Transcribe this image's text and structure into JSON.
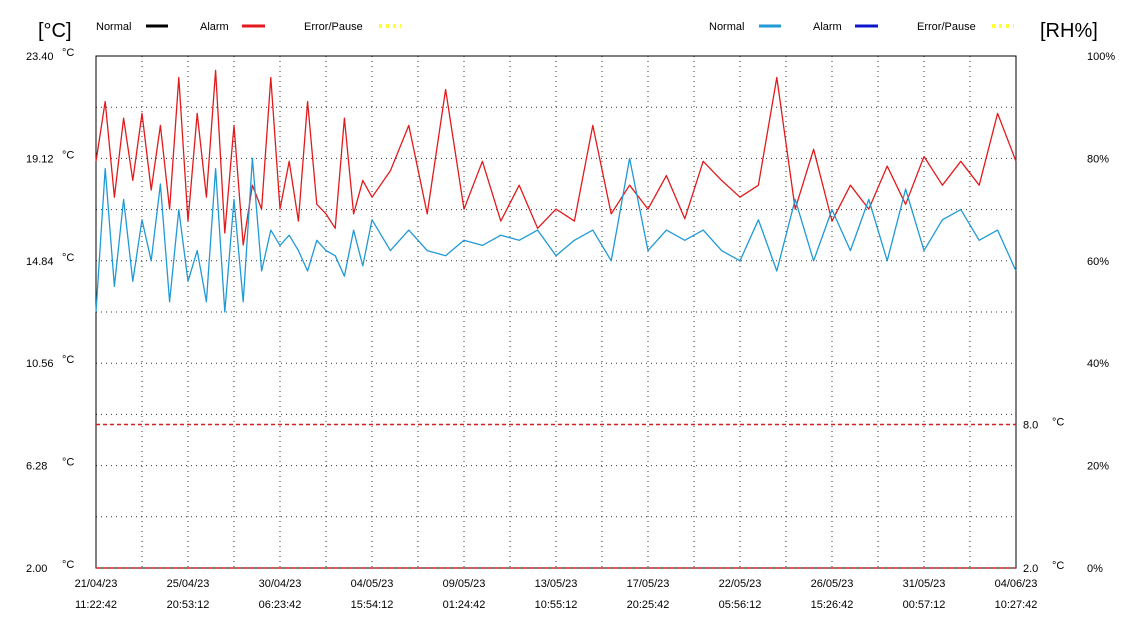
{
  "header": {
    "left_unit": "[°C]",
    "right_unit": "[RH%]",
    "legend_left": [
      {
        "label": "Normal",
        "color": "#000000",
        "style": "solid"
      },
      {
        "label": "Alarm",
        "color": "#e31a1c",
        "style": "solid"
      },
      {
        "label": "Error/Pause",
        "color": "#ffff33",
        "style": "dotted"
      }
    ],
    "legend_right": [
      {
        "label": "Normal",
        "color": "#1f9ad6",
        "style": "solid"
      },
      {
        "label": "Alarm",
        "color": "#0b16c8",
        "style": "solid"
      },
      {
        "label": "Error/Pause",
        "color": "#ffff33",
        "style": "dotted"
      }
    ]
  },
  "chart_data": {
    "type": "line",
    "grid": true,
    "y_left": {
      "ylim": [
        2.0,
        23.4
      ],
      "ticks": [
        2.0,
        6.28,
        10.56,
        14.84,
        19.12,
        23.4
      ],
      "tick_labels": [
        "2.00",
        "6.28",
        "10.56",
        "14.84",
        "19.12",
        "23.40"
      ],
      "unit": "°C"
    },
    "y_right": {
      "ylim": [
        0,
        100
      ],
      "ticks": [
        0,
        20,
        40,
        60,
        80,
        100
      ],
      "tick_labels": [
        "0%",
        "20%",
        "40%",
        "60%",
        "80%",
        "100%"
      ]
    },
    "x_ticks": [
      {
        "date": "21/04/23",
        "time": "11:22:42"
      },
      {
        "date": "25/04/23",
        "time": "20:53:12"
      },
      {
        "date": "30/04/23",
        "time": "06:23:42"
      },
      {
        "date": "04/05/23",
        "time": "15:54:12"
      },
      {
        "date": "09/05/23",
        "time": "01:24:42"
      },
      {
        "date": "13/05/23",
        "time": "10:55:12"
      },
      {
        "date": "17/05/23",
        "time": "20:25:42"
      },
      {
        "date": "22/05/23",
        "time": "05:56:12"
      },
      {
        "date": "26/05/23",
        "time": "15:26:42"
      },
      {
        "date": "31/05/23",
        "time": "00:57:12"
      },
      {
        "date": "04/06/23",
        "time": "10:27:42"
      }
    ],
    "thresholds": [
      {
        "value": 8.0,
        "label": "8.0",
        "unit": "°C",
        "color": "#d62020"
      },
      {
        "value": 2.0,
        "label": "2.0",
        "unit": "°C",
        "color": "#d62020"
      }
    ],
    "series": [
      {
        "axis": "left",
        "color": "#e31a1c",
        "x": [
          0,
          0.1,
          0.2,
          0.3,
          0.4,
          0.5,
          0.6,
          0.7,
          0.8,
          0.9,
          1.0,
          1.1,
          1.2,
          1.3,
          1.4,
          1.5,
          1.6,
          1.7,
          1.8,
          1.9,
          2.0,
          2.1,
          2.2,
          2.3,
          2.4,
          2.5,
          2.6,
          2.7,
          2.8,
          2.9,
          3.0,
          3.2,
          3.4,
          3.6,
          3.8,
          4.0,
          4.2,
          4.4,
          4.6,
          4.8,
          5.0,
          5.2,
          5.4,
          5.6,
          5.8,
          6.0,
          6.2,
          6.4,
          6.6,
          6.8,
          7.0,
          7.2,
          7.4,
          7.6,
          7.8,
          8.0,
          8.2,
          8.4,
          8.6,
          8.8,
          9.0,
          9.2,
          9.4,
          9.6,
          9.8,
          10.0
        ],
        "values": [
          19.0,
          21.5,
          17.5,
          20.8,
          18.2,
          21.0,
          17.8,
          20.5,
          17.0,
          22.5,
          16.5,
          21.0,
          17.5,
          22.8,
          16.0,
          20.5,
          15.5,
          18.0,
          17.0,
          22.5,
          17.0,
          19.0,
          16.5,
          21.5,
          17.2,
          16.8,
          16.2,
          20.8,
          16.8,
          18.2,
          17.5,
          18.6,
          20.5,
          16.8,
          22.0,
          17.0,
          19.0,
          16.5,
          18.0,
          16.2,
          17.0,
          16.5,
          20.5,
          16.8,
          18.0,
          17.0,
          18.4,
          16.6,
          19.0,
          18.2,
          17.5,
          18.0,
          22.5,
          17.0,
          19.5,
          16.5,
          18.0,
          17.0,
          18.8,
          17.2,
          19.2,
          18.0,
          19.0,
          18.0,
          21.0,
          19.0
        ]
      },
      {
        "axis": "right",
        "color": "#1f9ad6",
        "x": [
          0,
          0.1,
          0.2,
          0.3,
          0.4,
          0.5,
          0.6,
          0.7,
          0.8,
          0.9,
          1.0,
          1.1,
          1.2,
          1.3,
          1.4,
          1.5,
          1.6,
          1.7,
          1.8,
          1.9,
          2.0,
          2.1,
          2.2,
          2.3,
          2.4,
          2.5,
          2.6,
          2.7,
          2.8,
          2.9,
          3.0,
          3.2,
          3.4,
          3.6,
          3.8,
          4.0,
          4.2,
          4.4,
          4.6,
          4.8,
          5.0,
          5.2,
          5.4,
          5.6,
          5.8,
          6.0,
          6.2,
          6.4,
          6.6,
          6.8,
          7.0,
          7.2,
          7.4,
          7.6,
          7.8,
          8.0,
          8.2,
          8.4,
          8.6,
          8.8,
          9.0,
          9.2,
          9.4,
          9.6,
          9.8,
          10.0
        ],
        "values": [
          50,
          78,
          55,
          72,
          56,
          68,
          60,
          75,
          52,
          70,
          56,
          62,
          52,
          78,
          50,
          72,
          52,
          80,
          58,
          66,
          63,
          65,
          62,
          58,
          64,
          62,
          61,
          57,
          66,
          59,
          68,
          62,
          66,
          62,
          61,
          64,
          63,
          65,
          64,
          66,
          61,
          64,
          66,
          60,
          80,
          62,
          66,
          64,
          66,
          62,
          60,
          68,
          58,
          72,
          60,
          70,
          62,
          72,
          60,
          74,
          62,
          68,
          70,
          64,
          66,
          58
        ]
      }
    ]
  }
}
